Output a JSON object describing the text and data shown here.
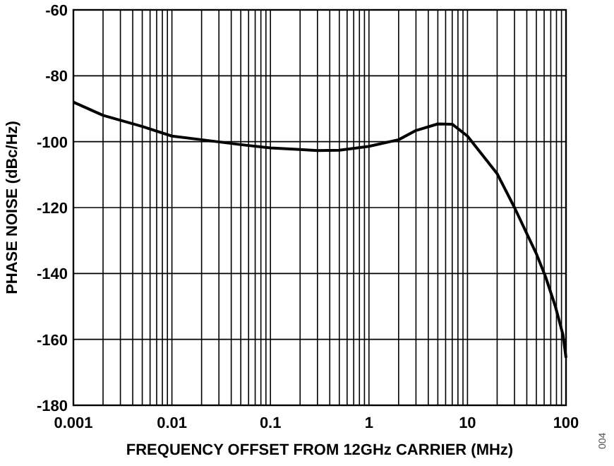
{
  "chart_data": {
    "type": "line",
    "xlabel": "FREQUENCY OFFSET FROM 12GHz CARRIER (MHz)",
    "ylabel": "PHASE NOISE (dBc/Hz)",
    "log": "x",
    "grid": true,
    "marker": "none",
    "line_style": "solid",
    "xlim": [
      0.001,
      100
    ],
    "xticks": [
      0.001,
      0.01,
      0.1,
      1,
      10,
      100
    ],
    "ylim": [
      -180,
      -60
    ],
    "yticks": [
      -180,
      -160,
      -140,
      -120,
      -100,
      -80,
      -60
    ],
    "annotations": [
      "004"
    ],
    "series": [
      {
        "color": "#000000",
        "x": [
          0.001,
          0.002,
          0.005,
          0.01,
          0.02,
          0.05,
          0.1,
          0.2,
          0.3,
          0.5,
          1,
          2,
          3,
          5,
          7,
          10,
          20,
          30,
          50,
          62,
          78,
          93,
          100
        ],
        "values": [
          -88,
          -92,
          -95.4,
          -98.3,
          -99.4,
          -100.9,
          -101.9,
          -102.4,
          -102.7,
          -102.6,
          -101.4,
          -99.4,
          -96.6,
          -94.6,
          -94.7,
          -98.3,
          -109.7,
          -120,
          -134,
          -141,
          -150,
          -158.5,
          -165.6
        ]
      }
    ]
  }
}
